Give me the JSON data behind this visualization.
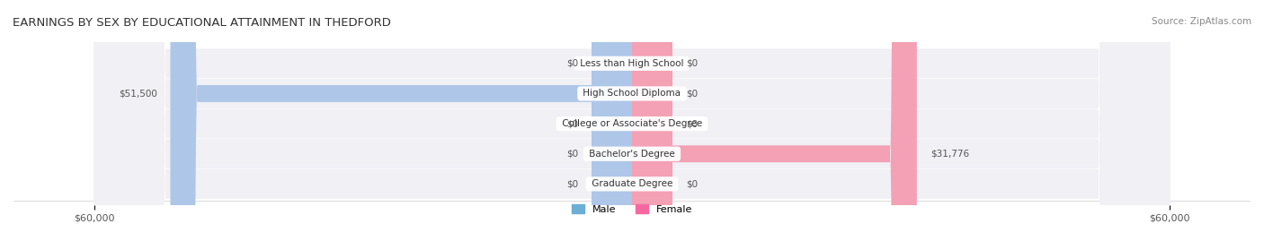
{
  "title": "EARNINGS BY SEX BY EDUCATIONAL ATTAINMENT IN THEDFORD",
  "source": "Source: ZipAtlas.com",
  "categories": [
    "Less than High School",
    "High School Diploma",
    "College or Associate's Degree",
    "Bachelor's Degree",
    "Graduate Degree"
  ],
  "male_values": [
    0,
    51500,
    0,
    0,
    0
  ],
  "female_values": [
    0,
    0,
    0,
    31776,
    0
  ],
  "male_color": "#aec6e8",
  "female_color": "#f4a0b5",
  "male_legend_color": "#6baed6",
  "female_legend_color": "#f768a1",
  "bar_bg_color": "#e8e8ee",
  "row_bg_color": "#f0f0f5",
  "max_value": 60000,
  "x_ticks": [
    -60000,
    60000
  ],
  "x_tick_labels": [
    "$60,000",
    "$60,000"
  ],
  "title_fontsize": 10,
  "label_fontsize": 8,
  "background_color": "#ffffff"
}
